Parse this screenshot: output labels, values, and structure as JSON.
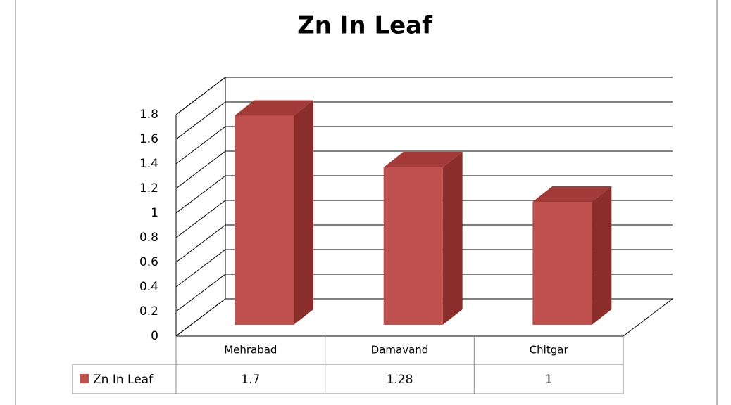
{
  "chart_data": {
    "type": "bar3d",
    "title": "Zn In Leaf",
    "categories": [
      "Mehrabad",
      "Damavand",
      "Chitgar"
    ],
    "series": [
      {
        "name": "Zn In Leaf",
        "color": "#c0504d",
        "values": [
          1.7,
          1.28,
          1
        ]
      }
    ],
    "ylim": [
      0,
      1.8
    ],
    "yticks": [
      0,
      0.2,
      0.4,
      0.6,
      0.8,
      1,
      1.2,
      1.4,
      1.6,
      1.8
    ],
    "grid": true,
    "data_table": true
  }
}
